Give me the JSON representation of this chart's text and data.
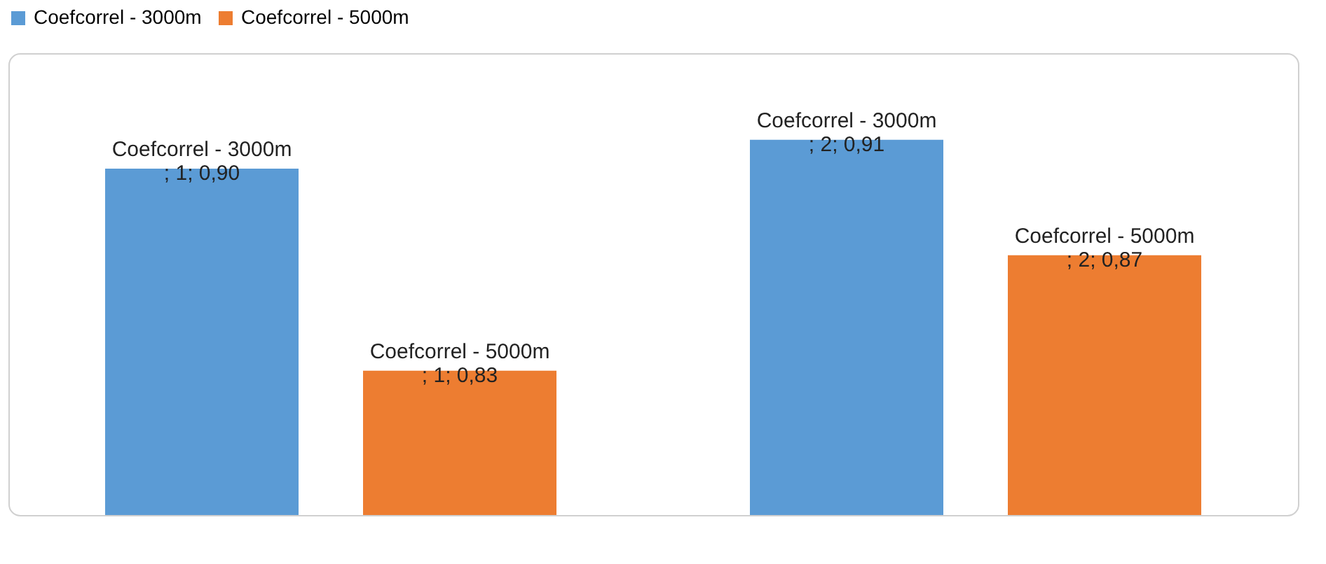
{
  "chart_data": {
    "type": "bar",
    "categories": [
      null,
      null
    ],
    "series": [
      {
        "name": "Coefcorrel - 3000m",
        "color": "#5b9bd5",
        "values": [
          0.9,
          0.91
        ],
        "value_labels": [
          "Coefcorrel - 3000m\n; 1; 0,90",
          "Coefcorrel - 3000m\n; 2; 0,91"
        ]
      },
      {
        "name": "Coefcorrel - 5000m",
        "color": "#ed7d31",
        "values": [
          0.83,
          0.87
        ],
        "value_labels": [
          "Coefcorrel - 5000m\n; 1; 0,83",
          "Coefcorrel - 5000m\n; 2; 0,87"
        ]
      }
    ],
    "ylim": [
      0.78,
      0.94
    ],
    "legend": "top"
  }
}
